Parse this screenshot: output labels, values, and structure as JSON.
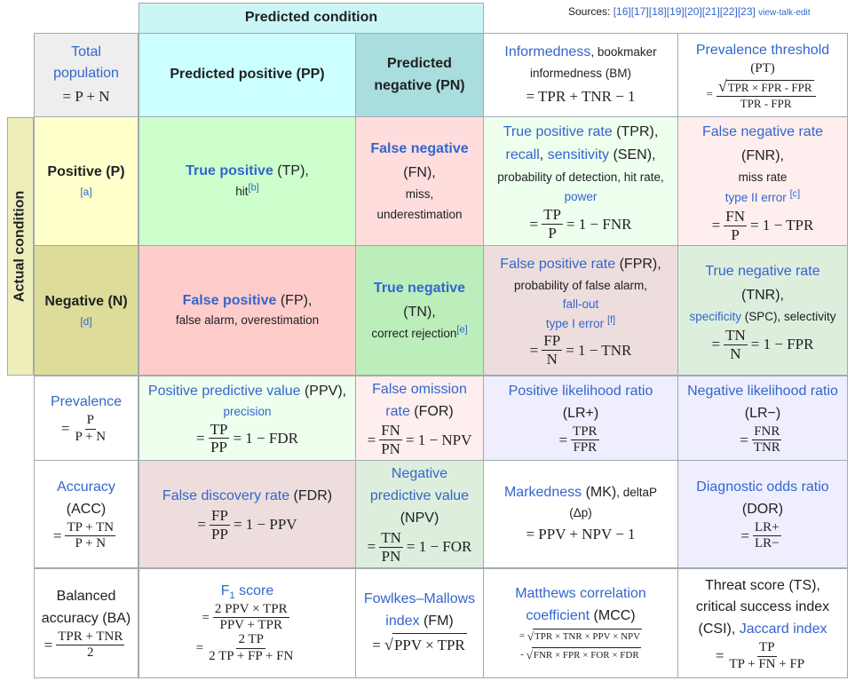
{
  "sources": {
    "label": "Sources:",
    "refs": "[16][17][18][19][20][21][22][23]",
    "view": "view",
    "talk": "talk",
    "edit": "edit",
    "sep": "·"
  },
  "headers": {
    "predicted": "Predicted condition",
    "actual": "Actual condition"
  },
  "total": {
    "label": "Total population",
    "formula": "= P + N"
  },
  "pp": "Predicted positive (PP)",
  "pn": "Predicted negative (PN)",
  "bm": {
    "name": "Informedness",
    "rest": ", bookmaker informedness (BM)",
    "formula": "= TPR + TNR − 1"
  },
  "pt": {
    "name": "Prevalence threshold",
    "abbr": "(PT)",
    "eq": "=",
    "num": "TPR × FPR - FPR",
    "den": "TPR - FPR"
  },
  "pos": {
    "label": "Positive (P)",
    "note": "[a]"
  },
  "neg": {
    "label": "Negative (N)",
    "note": "[d]"
  },
  "tp": {
    "name": "True positive",
    "abbr": " (TP),",
    "hit": "hit",
    "note": "[b]"
  },
  "fn": {
    "name": "False negative",
    "abbr": "(FN),",
    "miss": "miss,",
    "under": "underestimation"
  },
  "tpr": {
    "name": "True positive rate",
    "abbr": " (TPR),",
    "recall": "recall",
    "comma": ", ",
    "sens": "sensitivity",
    "sen": " (SEN),",
    "prob": "probability of detection, hit rate,",
    "power": "power",
    "eq": "=",
    "num": "TP",
    "den": "P",
    "rest": "= 1 − FNR"
  },
  "fnr": {
    "name": "False negative rate",
    "abbr": "(FNR),",
    "miss": "miss rate",
    "type": "type II error",
    "note": "[c]",
    "eq": "=",
    "num": "FN",
    "den": "P",
    "rest": "= 1 − TPR"
  },
  "fp": {
    "name": "False positive",
    "abbr": " (FP),",
    "alarm": "false alarm, overestimation"
  },
  "tn": {
    "name": "True negative",
    "abbr": "(TN),",
    "rej": "correct rejection",
    "note": "[e]"
  },
  "fpr": {
    "name": "False positive rate",
    "abbr": " (FPR),",
    "prob": "probability of false alarm,",
    "fallout": "fall-out",
    "type": "type I error",
    "note": "[f]",
    "eq": "=",
    "num": "FP",
    "den": "N",
    "rest": "= 1 − TNR"
  },
  "tnr": {
    "name": "True negative rate",
    "abbr": "(TNR),",
    "spec": "specificity",
    "rest1": " (SPC), selectivity",
    "eq": "=",
    "num": "TN",
    "den": "N",
    "rest": "= 1 − FPR"
  },
  "prev": {
    "name": "Prevalence",
    "eq": "=",
    "num": "P",
    "den": "P + N"
  },
  "ppv": {
    "name": "Positive predictive value",
    "abbr": " (PPV),",
    "prec": "precision",
    "eq": "=",
    "num": "TP",
    "den": "PP",
    "rest": "= 1 − FDR"
  },
  "for": {
    "name1": "False omission",
    "name2": "rate",
    "abbr": " (FOR)",
    "eq": "=",
    "num": "FN",
    "den": "PN",
    "rest": "= 1 − NPV"
  },
  "lrp": {
    "name": "Positive likelihood ratio",
    "abbr": "(LR+)",
    "eq": "=",
    "num": "TPR",
    "den": "FPR"
  },
  "lrn": {
    "name": "Negative likelihood ratio",
    "abbr": "(LR−)",
    "eq": "=",
    "num": "FNR",
    "den": "TNR"
  },
  "acc": {
    "name": "Accuracy",
    "abbr": "(ACC)",
    "eq": "=",
    "num": "TP + TN",
    "den": "P + N"
  },
  "fdr": {
    "name": "False discovery rate",
    "abbr": " (FDR)",
    "eq": "=",
    "num": "FP",
    "den": "PP",
    "rest": "= 1 − PPV"
  },
  "npv": {
    "name1": "Negative",
    "name2": "predictive value",
    "abbr": "(NPV)",
    "eq": "=",
    "num": "TN",
    "den": "PN",
    "rest": "= 1 − FOR"
  },
  "mk": {
    "name": "Markedness",
    "abbr": " (MK)",
    "deltap": ", deltaP",
    "dp": "(Δp)",
    "formula": "= PPV + NPV − 1"
  },
  "dor": {
    "name": "Diagnostic odds ratio",
    "abbr": "(DOR)",
    "eq": "=",
    "num": "LR+",
    "den": "LR−"
  },
  "ba": {
    "l1": "Balanced",
    "l2": "accuracy (BA)",
    "eq": "=",
    "num": "TPR + TNR",
    "den": "2"
  },
  "f1": {
    "name": "F",
    "sub": "1",
    "name2": " score",
    "eq": "=",
    "num1": "2 PPV × TPR",
    "den1": "PPV + TPR",
    "num2": "2 TP",
    "den2": "2 TP + FP + FN"
  },
  "fm": {
    "name": "Fowlkes–Mallows",
    "name2": "index",
    "abbr": " (FM)",
    "eq": "=",
    "rad": "PPV × TPR"
  },
  "mcc": {
    "name": "Matthews correlation",
    "name2": "coefficient",
    "abbr": " (MCC)",
    "eq1": "=",
    "rad1": "TPR × TNR × PPV × NPV",
    "eq2": "-",
    "rad2": "FNR × FPR × FOR × FDR"
  },
  "ts": {
    "l1": "Threat score (TS),",
    "l2": "critical success index",
    "l3": "(CSI), ",
    "jac": "Jaccard index",
    "eq": "=",
    "num": "TP",
    "den": "TP + FN + FP"
  },
  "colors": {
    "header": "#cbf6f6",
    "pp": "#ccffff",
    "pn": "#aadddd",
    "total": "#eeeeee",
    "actual": "#eeeebb",
    "pos": "#ffffcc",
    "neg": "#dddd99",
    "tp": "#ccffcc",
    "fn": "#ffdddd",
    "fp": "#ffcccc",
    "tn": "#bbeebb",
    "ltgreen": "#eeffee",
    "ltred": "#ffeeee",
    "mauve": "#eedddd",
    "tnr": "#ddeedd",
    "lrblue": "#eeeeff",
    "link": "#3366cc"
  }
}
